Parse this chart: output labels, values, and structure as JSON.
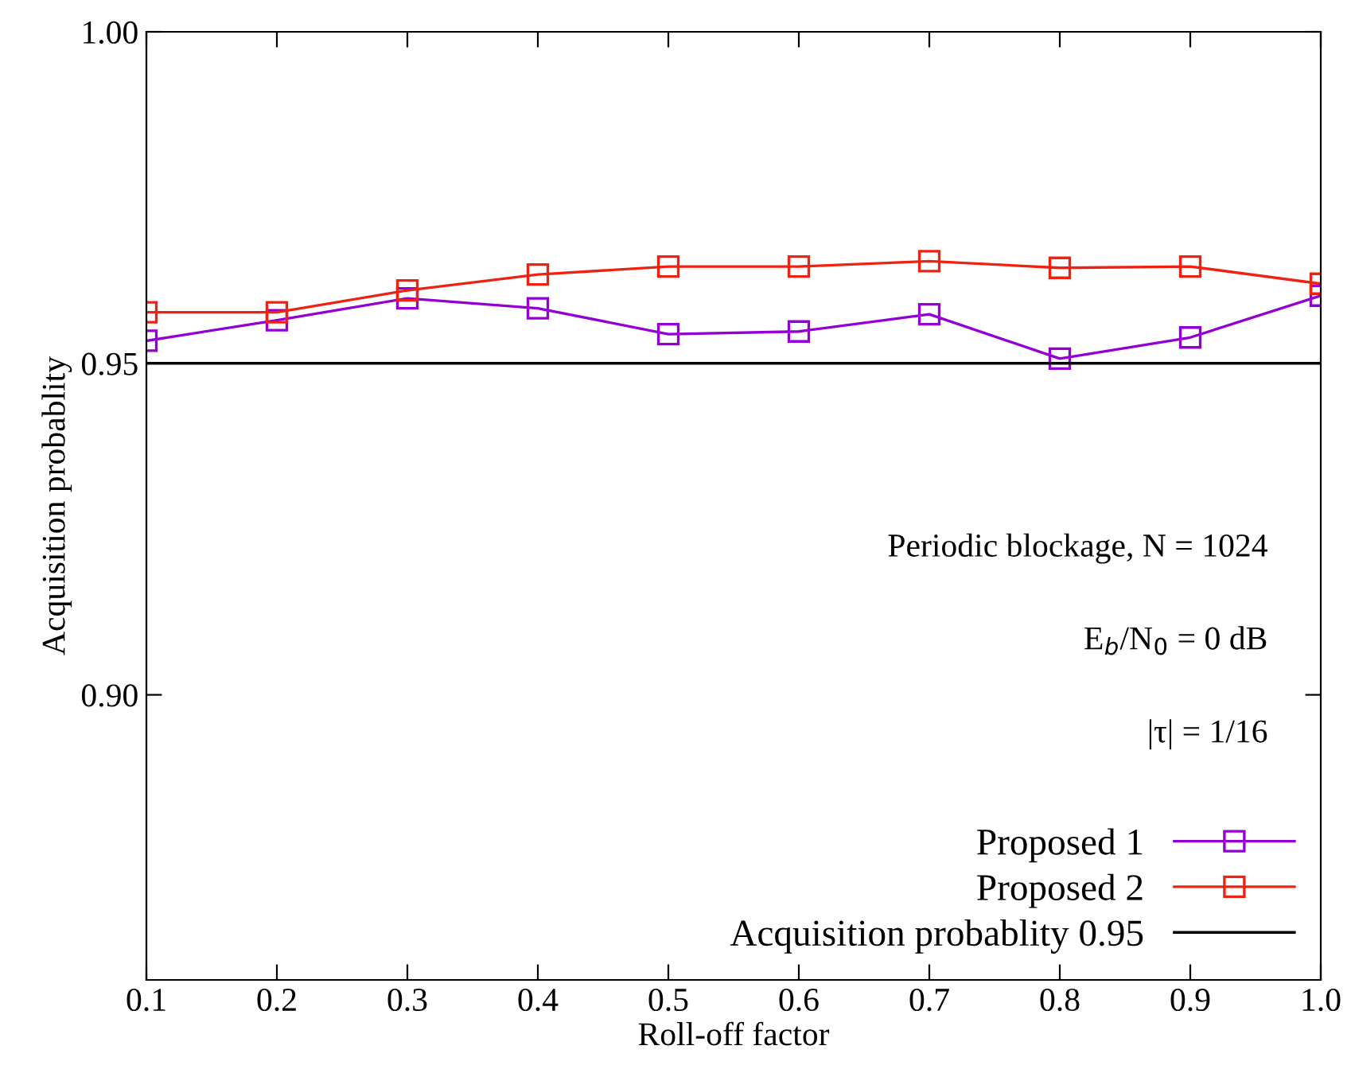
{
  "chart_data": {
    "type": "line",
    "xlabel": "Roll-off factor",
    "ylabel": "Acquisition probablity",
    "x": [
      0.1,
      0.2,
      0.3,
      0.4,
      0.5,
      0.6,
      0.7,
      0.8,
      0.9,
      1.0
    ],
    "series": [
      {
        "name": "Proposed 1",
        "color": "#9400d3",
        "values": [
          0.9534,
          0.9565,
          0.9598,
          0.9583,
          0.9544,
          0.9548,
          0.9574,
          0.9507,
          0.9539,
          0.9602
        ]
      },
      {
        "name": "Proposed 2",
        "color": "#ee2211",
        "values": [
          0.9577,
          0.9577,
          0.961,
          0.9634,
          0.9646,
          0.9646,
          0.9654,
          0.9644,
          0.9646,
          0.962
        ]
      }
    ],
    "ref_lines": [
      {
        "axis": "y",
        "value": 0.95,
        "label": "Acquisition probablity 0.95",
        "color": "#000000",
        "line_style": "solid"
      }
    ],
    "annotations": [
      "Periodic blockage, N = 1024",
      "E$_{b}$/N$_{0}$ = 0 dB",
      "|τ| = 1/16"
    ],
    "xlim": [
      0.1,
      1.0
    ],
    "ylim": [
      0.857,
      1.0
    ],
    "xticks": [
      0.1,
      0.2,
      0.3,
      0.4,
      0.5,
      0.6,
      0.7,
      0.8,
      0.9,
      {
        "value": 1.0,
        "label": "1.0"
      }
    ],
    "yticks": [
      {
        "value": 0.9,
        "label": "0.90"
      },
      0.95,
      {
        "value": 1.0,
        "label": "1.00"
      }
    ],
    "marker": "square",
    "line_style": "solid",
    "grid": false,
    "legend": "bottom right"
  }
}
